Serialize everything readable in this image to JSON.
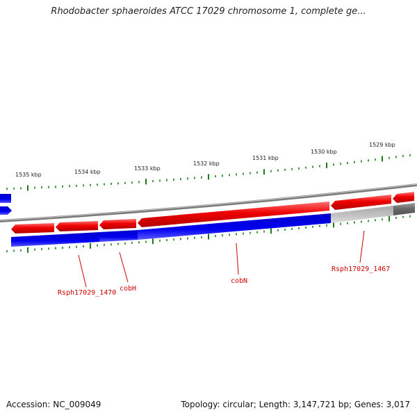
{
  "title": "Rhodobacter sphaeroides ATCC 17029 chromosome 1, complete ge...",
  "footer": {
    "accession": "Accession: NC_009049",
    "summary": "Topology: circular; Length: 3,147,721 bp; Genes: 3,017"
  },
  "colors": {
    "forward_gene": "#e80000",
    "reverse_gene": "#0000e0",
    "pseudo_gene": "#b8b8b8",
    "tick": "#1a7a1a",
    "label": "#cc0000"
  },
  "kbp_ticks": [
    "1535 kbp",
    "1534 kbp",
    "1533 kbp",
    "1532 kbp",
    "1531 kbp",
    "1530 kbp",
    "1529 kbp"
  ],
  "gene_labels": [
    "Rsph17029_1470",
    "cobH",
    "cobN",
    "Rsph17029_1467"
  ]
}
